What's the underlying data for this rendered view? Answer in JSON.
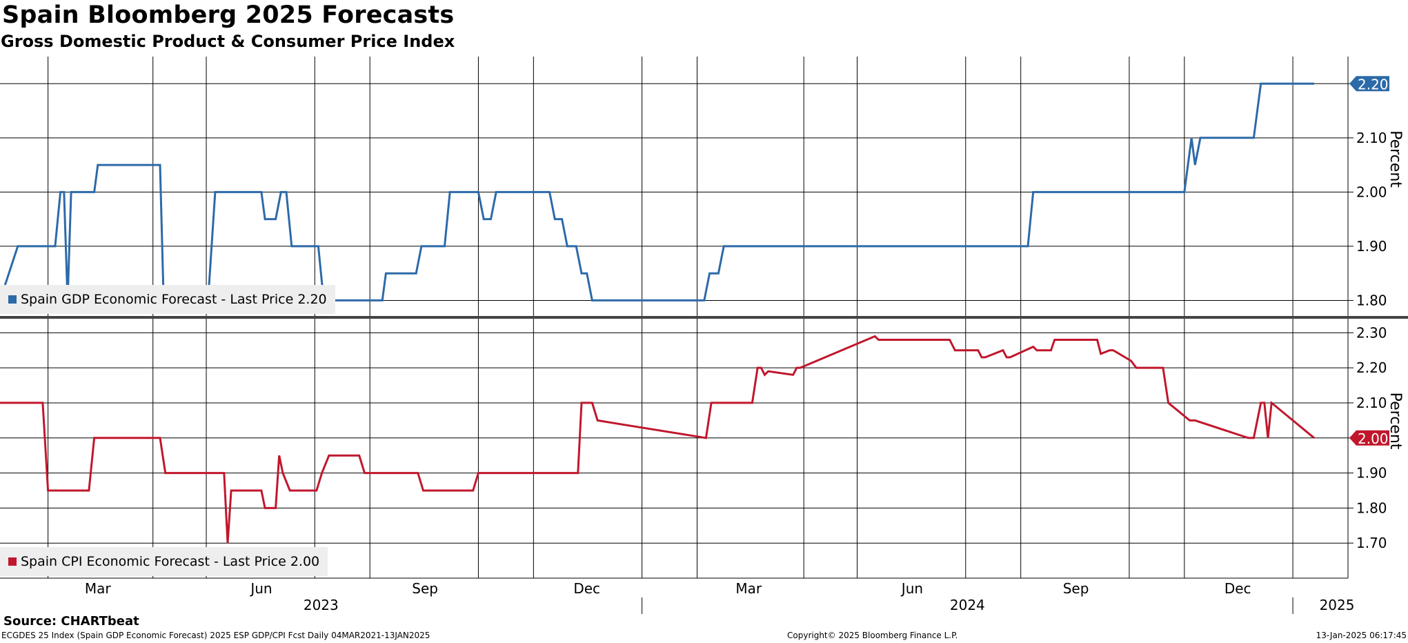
{
  "title": "Spain Bloomberg 2025 Forecasts",
  "subtitle": "Gross Domestic Product & Consumer Price Index",
  "source": "Source: CHARTbeat",
  "footer": {
    "left": "ECGDES 25 Index (Spain GDP Economic Forecast) 2025 ESP GDP/CPI Fcst  Daily 04MAR2021-13JAN2025",
    "middle": "Copyright© 2025 Bloomberg Finance L.P.",
    "right": "13-Jan-2025 06:17:45"
  },
  "colors": {
    "gdp": "#2c6aa8",
    "cpi": "#c0172c",
    "grid": "#000000",
    "legend_bg": "#eeeeee"
  },
  "x_axis": {
    "month_ticks": [
      "Mar",
      "Jun",
      "Sep",
      "Dec",
      "Mar",
      "Jun",
      "Sep",
      "Dec"
    ],
    "year_labels": [
      "2023",
      "2024",
      "2025"
    ]
  },
  "chart_data": [
    {
      "type": "line",
      "name": "Spain GDP Economic Forecast",
      "legend": "Spain GDP Economic Forecast - Last Price 2.20",
      "last_price": "2.20",
      "ylabel": "Percent",
      "ylim": [
        1.77,
        2.25
      ],
      "yticks": [
        "1.80",
        "1.90",
        "2.00",
        "2.10",
        "2.20"
      ],
      "xlim": [
        "2023-01-05",
        "2025-02-01"
      ],
      "x": [
        "2023-01-05",
        "2023-01-15",
        "2023-02-05",
        "2023-02-08",
        "2023-02-10",
        "2023-02-12",
        "2023-02-14",
        "2023-02-16",
        "2023-02-27",
        "2023-03-01",
        "2023-04-05",
        "2023-04-07",
        "2023-05-02",
        "2023-05-06",
        "2023-06-01",
        "2023-06-03",
        "2023-06-09",
        "2023-06-12",
        "2023-06-15",
        "2023-06-18",
        "2023-07-03",
        "2023-07-06",
        "2023-08-08",
        "2023-08-10",
        "2023-08-27",
        "2023-08-30",
        "2023-09-12",
        "2023-09-15",
        "2023-10-01",
        "2023-10-04",
        "2023-10-08",
        "2023-10-11",
        "2023-11-10",
        "2023-11-13",
        "2023-11-17",
        "2023-11-20",
        "2023-11-25",
        "2023-11-28",
        "2023-12-01",
        "2023-12-04",
        "2024-02-05",
        "2024-02-08",
        "2024-02-13",
        "2024-02-16",
        "2024-08-05",
        "2024-08-08",
        "2024-11-01",
        "2024-11-05",
        "2024-11-07",
        "2024-11-10",
        "2024-12-10",
        "2024-12-14",
        "2025-01-13"
      ],
      "values": [
        1.8,
        1.9,
        1.9,
        2.0,
        2.0,
        1.8,
        2.0,
        2.0,
        2.0,
        2.05,
        2.05,
        1.8,
        1.8,
        2.0,
        2.0,
        1.95,
        1.95,
        2.0,
        2.0,
        1.9,
        1.9,
        1.8,
        1.8,
        1.85,
        1.85,
        1.9,
        1.9,
        2.0,
        2.0,
        1.95,
        1.95,
        2.0,
        2.0,
        1.95,
        1.95,
        1.9,
        1.9,
        1.85,
        1.85,
        1.8,
        1.8,
        1.85,
        1.85,
        1.9,
        1.9,
        2.0,
        2.0,
        2.1,
        2.05,
        2.1,
        2.1,
        2.2,
        2.2
      ]
    },
    {
      "type": "line",
      "name": "Spain CPI Economic Forecast",
      "legend": "Spain CPI Economic Forecast - Last Price 2.00",
      "last_price": "2.00",
      "ylabel": "Percent",
      "ylim": [
        1.6,
        2.34
      ],
      "yticks": [
        "1.70",
        "1.80",
        "1.90",
        "2.00",
        "2.10",
        "2.20",
        "2.30"
      ],
      "xlim": [
        "2023-01-05",
        "2025-02-01"
      ],
      "x": [
        "2023-01-05",
        "2023-01-29",
        "2023-02-01",
        "2023-02-24",
        "2023-02-27",
        "2023-04-05",
        "2023-04-08",
        "2023-05-11",
        "2023-05-13",
        "2023-05-15",
        "2023-05-17",
        "2023-06-01",
        "2023-06-03",
        "2023-06-09",
        "2023-06-11",
        "2023-06-13",
        "2023-06-17",
        "2023-07-02",
        "2023-07-05",
        "2023-07-09",
        "2023-07-12",
        "2023-07-26",
        "2023-07-29",
        "2023-08-28",
        "2023-08-31",
        "2023-09-03",
        "2023-09-06",
        "2023-09-28",
        "2023-10-01",
        "2023-10-04",
        "2023-11-26",
        "2023-11-28",
        "2023-12-01",
        "2023-12-04",
        "2023-12-07",
        "2024-02-06",
        "2024-02-09",
        "2024-03-03",
        "2024-03-06",
        "2024-03-08",
        "2024-03-10",
        "2024-03-12",
        "2024-03-26",
        "2024-03-28",
        "2024-03-30",
        "2024-05-11",
        "2024-05-13",
        "2024-06-22",
        "2024-06-25",
        "2024-07-08",
        "2024-07-10",
        "2024-07-12",
        "2024-07-22",
        "2024-07-24",
        "2024-07-26",
        "2024-08-08",
        "2024-08-10",
        "2024-08-18",
        "2024-08-20",
        "2024-09-13",
        "2024-09-15",
        "2024-09-20",
        "2024-09-22",
        "2024-10-02",
        "2024-10-05",
        "2024-10-20",
        "2024-10-23",
        "2024-11-04",
        "2024-11-07",
        "2024-12-07",
        "2024-12-10",
        "2024-12-14",
        "2024-12-16",
        "2024-12-18",
        "2024-12-20",
        "2025-01-13"
      ],
      "values": [
        2.1,
        2.1,
        1.85,
        1.85,
        2.0,
        2.0,
        1.9,
        1.9,
        1.7,
        1.85,
        1.85,
        1.85,
        1.8,
        1.8,
        1.95,
        1.9,
        1.85,
        1.85,
        1.9,
        1.95,
        1.95,
        1.95,
        1.9,
        1.9,
        1.85,
        1.85,
        1.85,
        1.85,
        1.9,
        1.9,
        1.9,
        2.1,
        2.1,
        2.1,
        2.05,
        2.0,
        2.1,
        2.1,
        2.2,
        2.2,
        2.18,
        2.19,
        2.18,
        2.2,
        2.2,
        2.29,
        2.28,
        2.28,
        2.25,
        2.25,
        2.23,
        2.23,
        2.25,
        2.23,
        2.23,
        2.26,
        2.25,
        2.25,
        2.28,
        2.28,
        2.24,
        2.25,
        2.25,
        2.22,
        2.2,
        2.2,
        2.1,
        2.05,
        2.05,
        2.0,
        2.0,
        2.1,
        2.1,
        2.0,
        2.1,
        2.0
      ]
    }
  ]
}
